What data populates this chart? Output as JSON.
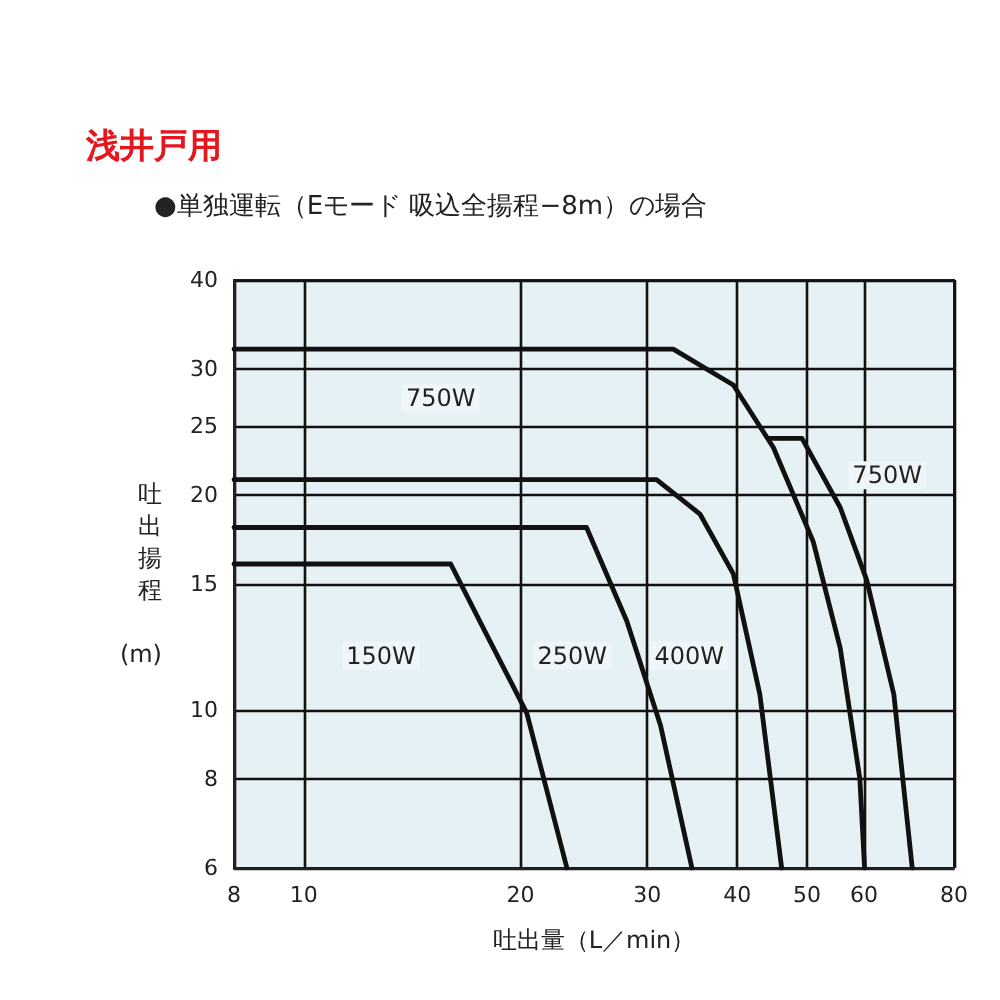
{
  "chart_data": {
    "type": "line",
    "title": "浅井戸用",
    "subtitle": "●単独運転（Eモード 吸込全揚程−8m）の場合",
    "xlabel": "吐出量（L／min）",
    "ylabel": "吐出揚程(m)",
    "log": "xy",
    "grid": true,
    "marker": "none",
    "line_style": "solid",
    "xlim": [
      8,
      80
    ],
    "xticks": [
      8,
      10,
      20,
      30,
      40,
      50,
      60,
      80
    ],
    "ylim": [
      6,
      40
    ],
    "yticks": [
      6,
      8,
      10,
      15,
      20,
      25,
      30,
      40
    ],
    "series": [
      {
        "color": "#111111",
        "x": [
          8,
          16,
          17.9,
          20.4,
          23.2
        ],
        "values": [
          16,
          16,
          12.8,
          9.9,
          6
        ]
      },
      {
        "color": "#111111",
        "x": [
          8,
          24.7,
          28.1,
          31.3,
          34.6
        ],
        "values": [
          18,
          18,
          13.3,
          9.5,
          6
        ]
      },
      {
        "color": "#111111",
        "x": [
          8,
          30.9,
          35.5,
          39.5,
          43,
          46.1
        ],
        "values": [
          21,
          21,
          18.8,
          15.5,
          10.5,
          6
        ]
      },
      {
        "color": "#111111",
        "x": [
          8,
          32.6,
          39.5,
          44.9,
          51,
          55.6,
          59.2,
          60.1
        ],
        "values": [
          32,
          32,
          28.5,
          23.3,
          17.2,
          12.2,
          8,
          6
        ]
      },
      {
        "color": "#111111",
        "x": [
          44.4,
          49.2,
          55.6,
          60.5,
          66,
          70
        ],
        "values": [
          24,
          24,
          19.2,
          15.2,
          10.5,
          6
        ]
      }
    ],
    "annotations": [
      {
        "text": "150W",
        "x": 12.8,
        "y": 11.9
      },
      {
        "text": "250W",
        "x": 23.6,
        "y": 11.9
      },
      {
        "text": "400W",
        "x": 34.3,
        "y": 11.9
      },
      {
        "text": "750W",
        "x": 15.5,
        "y": 27.3
      },
      {
        "text": "750W",
        "x": 64.6,
        "y": 21.3
      }
    ]
  }
}
